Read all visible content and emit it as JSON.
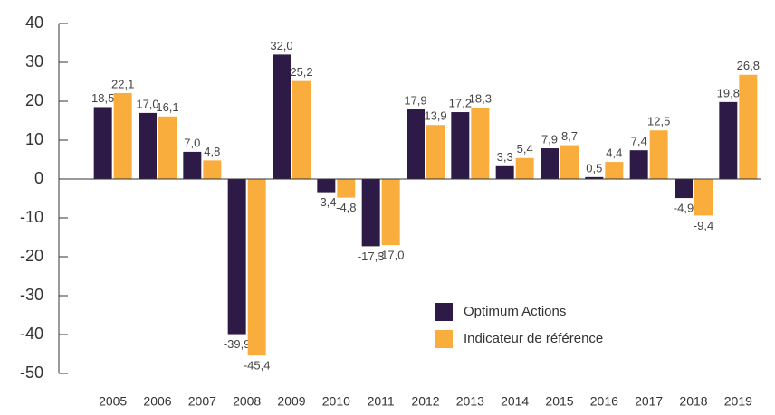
{
  "chart_data": {
    "type": "bar",
    "categories": [
      "2005",
      "2006",
      "2007",
      "2008",
      "2009",
      "2010",
      "2011",
      "2012",
      "2013",
      "2014",
      "2015",
      "2016",
      "2017",
      "2018",
      "2019"
    ],
    "series": [
      {
        "name": "Optimum Actions",
        "color": "#2e1a47",
        "values": [
          18.5,
          17.0,
          7.0,
          -39.9,
          32.0,
          -3.4,
          -17.3,
          17.9,
          17.2,
          3.3,
          7.9,
          0.5,
          7.4,
          -4.9,
          19.8
        ],
        "value_labels": [
          "18,5",
          "17,0",
          "7,0",
          "-39,9",
          "32,0",
          "-3,4",
          "-17,3",
          "17,9",
          "17,2",
          "3,3",
          "7,9",
          "0,5",
          "7,4",
          "-4,9",
          "19,8"
        ]
      },
      {
        "name": "Indicateur de référence",
        "color": "#f9ad3c",
        "values": [
          22.1,
          16.1,
          4.8,
          -45.4,
          25.2,
          -4.8,
          -17.0,
          13.9,
          18.3,
          5.4,
          8.7,
          4.4,
          12.5,
          -9.4,
          26.8
        ],
        "value_labels": [
          "22,1",
          "16,1",
          "4,8",
          "-45,4",
          "25,2",
          "-4,8",
          "-17,0",
          "13,9",
          "18,3",
          "5,4",
          "8,7",
          "4,4",
          "12,5",
          "-9,4",
          "26,8"
        ]
      }
    ],
    "ylim": [
      -50,
      40
    ],
    "yticks": [
      -50,
      -40,
      -30,
      -20,
      -10,
      0,
      10,
      20,
      30,
      40
    ],
    "legend_position": "lower right"
  }
}
